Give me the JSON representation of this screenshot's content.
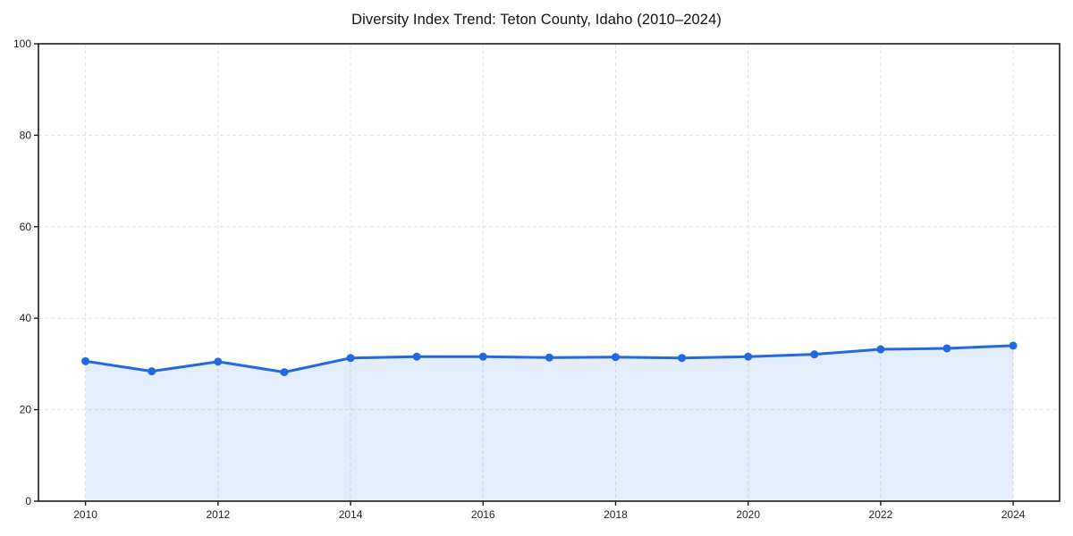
{
  "page": {
    "background": "#ffffff"
  },
  "chart_data": {
    "type": "line",
    "title": "Diversity Index Trend: Teton County, Idaho (2010–2024)",
    "x": [
      2010,
      2011,
      2012,
      2013,
      2014,
      2015,
      2016,
      2017,
      2018,
      2019,
      2020,
      2021,
      2022,
      2023,
      2024
    ],
    "series": [
      {
        "name": "Diversity Index",
        "values": [
          30.6,
          28.4,
          30.5,
          28.2,
          31.3,
          31.6,
          31.6,
          31.4,
          31.5,
          31.3,
          31.6,
          32.1,
          33.2,
          33.4,
          34.0
        ]
      }
    ],
    "xlabel": "",
    "ylabel": "",
    "xlim": [
      2009.29,
      2024.7
    ],
    "ylim": [
      0,
      100
    ],
    "xticks": [
      2010,
      2012,
      2014,
      2016,
      2018,
      2020,
      2022,
      2024
    ],
    "yticks": [
      0,
      20,
      40,
      60,
      80,
      100
    ],
    "grid": true,
    "grid_style": "dashed",
    "legend_position": "none",
    "marker": "circle",
    "area_fill": true,
    "line_color": "#2268e0",
    "marker_color": "#2268e0",
    "fill_color": "#2268e0",
    "fill_opacity": 0.12,
    "grid_color": "#e1e1e1",
    "axis_color": "#1a1a1a",
    "tick_label_color": "#222222",
    "title_color": "#111111"
  }
}
